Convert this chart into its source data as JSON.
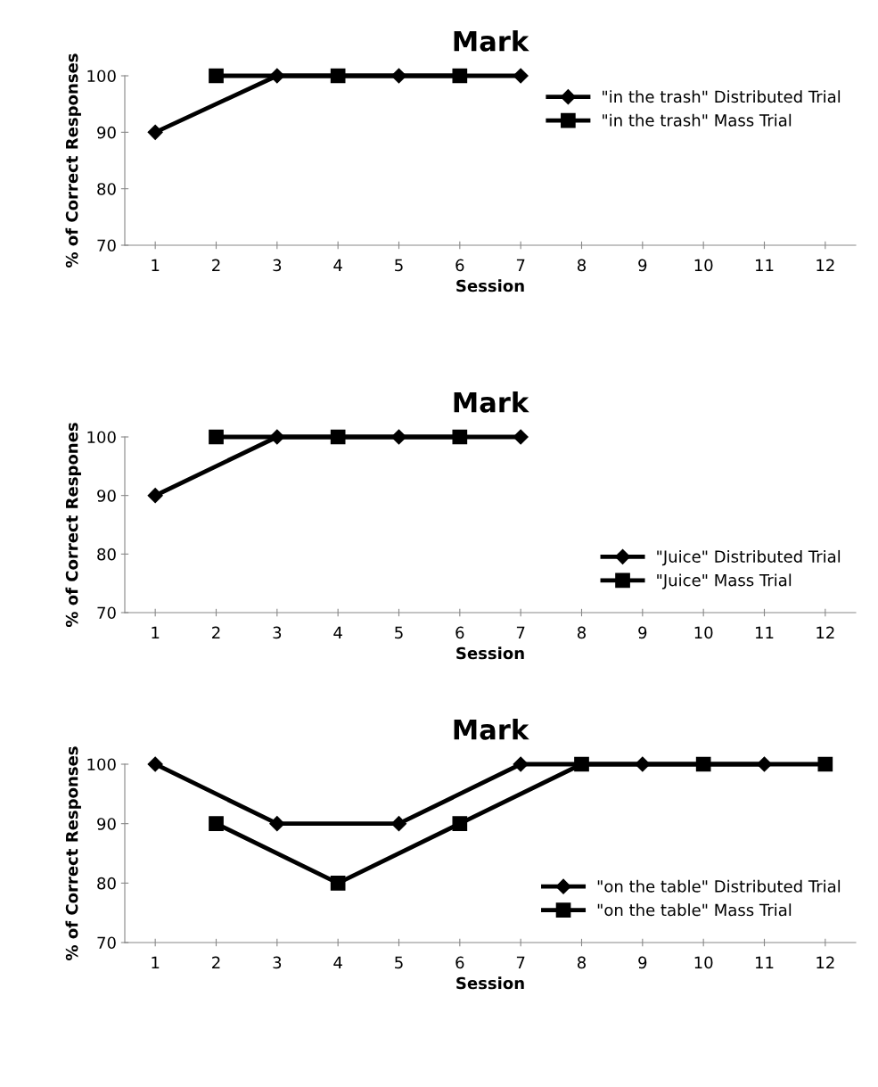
{
  "chart_data": [
    {
      "type": "line",
      "title": "Mark",
      "xlabel": "Session",
      "ylabel": "% of Correct Responses",
      "categories": [
        "1",
        "2",
        "3",
        "4",
        "5",
        "6",
        "7",
        "8",
        "9",
        "10",
        "11",
        "12"
      ],
      "ylim": [
        70,
        100
      ],
      "yticks": [
        70,
        80,
        90,
        100
      ],
      "legend": "upper right",
      "grid": false,
      "series": [
        {
          "name": "\"in the trash\" Distributed Trial",
          "color": "#000000",
          "marker": "diamond",
          "values": [
            90,
            null,
            100,
            null,
            100,
            null,
            100,
            null,
            null,
            null,
            null,
            null
          ]
        },
        {
          "name": "\"in the trash\" Mass Trial",
          "color": "#000000",
          "marker": "square",
          "values": [
            null,
            100,
            null,
            100,
            null,
            100,
            null,
            null,
            null,
            null,
            null,
            null
          ]
        }
      ]
    },
    {
      "type": "line",
      "title": "Mark",
      "xlabel": "Session",
      "ylabel": "% of Correct Respones",
      "categories": [
        "1",
        "2",
        "3",
        "4",
        "5",
        "6",
        "7",
        "8",
        "9",
        "10",
        "11",
        "12"
      ],
      "ylim": [
        70,
        100
      ],
      "yticks": [
        70,
        80,
        90,
        100
      ],
      "legend": "lower right",
      "grid": false,
      "series": [
        {
          "name": "\"Juice\" Distributed Trial",
          "color": "#000000",
          "marker": "diamond",
          "values": [
            90,
            null,
            100,
            null,
            100,
            null,
            100,
            null,
            null,
            null,
            null,
            null
          ]
        },
        {
          "name": "\"Juice\" Mass Trial",
          "color": "#000000",
          "marker": "square",
          "values": [
            null,
            100,
            null,
            100,
            null,
            100,
            null,
            null,
            null,
            null,
            null,
            null
          ]
        }
      ]
    },
    {
      "type": "line",
      "title": "Mark",
      "xlabel": "Session",
      "ylabel": "% of Correct Responses",
      "categories": [
        "1",
        "2",
        "3",
        "4",
        "5",
        "6",
        "7",
        "8",
        "9",
        "10",
        "11",
        "12"
      ],
      "ylim": [
        70,
        100
      ],
      "yticks": [
        70,
        80,
        90,
        100
      ],
      "legend": "lower right",
      "grid": false,
      "series": [
        {
          "name": "\"on the table\" Distributed Trial",
          "color": "#000000",
          "marker": "diamond",
          "values": [
            100,
            null,
            90,
            null,
            90,
            null,
            100,
            null,
            100,
            null,
            100,
            null
          ]
        },
        {
          "name": "\"on the table\" Mass Trial",
          "color": "#000000",
          "marker": "square",
          "values": [
            null,
            90,
            null,
            80,
            null,
            90,
            null,
            100,
            null,
            100,
            null,
            100
          ]
        }
      ]
    }
  ]
}
